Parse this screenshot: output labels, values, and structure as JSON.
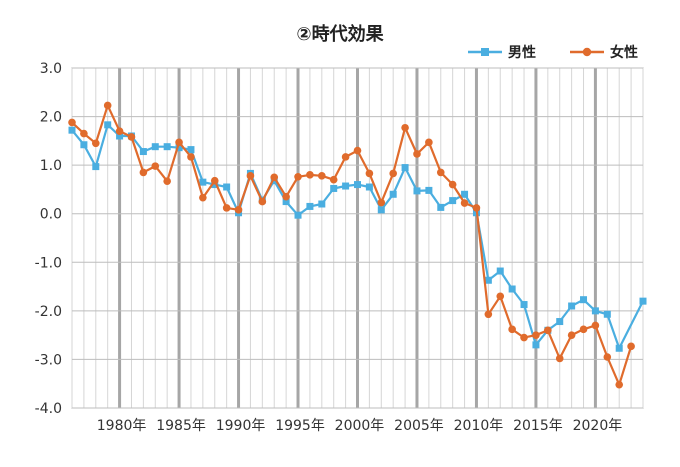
{
  "chart_data": {
    "type": "line",
    "title": "②時代効果",
    "xlabel": "",
    "ylabel": "",
    "xlim": [
      1976,
      2024
    ],
    "ylim": [
      -4.0,
      3.0
    ],
    "yticks": [
      "3.0",
      "2.0",
      "1.0",
      "0.0",
      "-1.0",
      "-2.0",
      "-3.0",
      "-4.0"
    ],
    "xticks": [
      {
        "year": 1980,
        "label": "1980年"
      },
      {
        "year": 1985,
        "label": "1985年"
      },
      {
        "year": 1990,
        "label": "1990年"
      },
      {
        "year": 1995,
        "label": "1995年"
      },
      {
        "year": 2000,
        "label": "2000年"
      },
      {
        "year": 2005,
        "label": "2005年"
      },
      {
        "year": 2010,
        "label": "2010年"
      },
      {
        "year": 2015,
        "label": "2015年"
      },
      {
        "year": 2020,
        "label": "2020年"
      }
    ],
    "grid": true,
    "legend_position": "top-right",
    "x": [
      1976,
      1977,
      1978,
      1979,
      1980,
      1981,
      1982,
      1983,
      1984,
      1985,
      1986,
      1987,
      1988,
      1989,
      1990,
      1991,
      1992,
      1993,
      1994,
      1995,
      1996,
      1997,
      1998,
      1999,
      2000,
      2001,
      2002,
      2003,
      2004,
      2005,
      2006,
      2007,
      2008,
      2009,
      2010,
      2011,
      2012,
      2013,
      2014,
      2015,
      2016,
      2017,
      2018,
      2019,
      2020,
      2021,
      2022,
      2023,
      2024
    ],
    "series": [
      {
        "name": "男性",
        "color": "#4aaee0",
        "marker": "square",
        "values": [
          1.72,
          1.42,
          0.97,
          1.83,
          1.6,
          1.6,
          1.28,
          1.38,
          1.38,
          1.36,
          1.32,
          0.65,
          0.6,
          0.55,
          0.02,
          0.83,
          0.28,
          0.68,
          0.25,
          -0.03,
          0.15,
          0.2,
          0.52,
          0.57,
          0.6,
          0.55,
          0.08,
          0.4,
          0.95,
          0.47,
          0.48,
          0.13,
          0.27,
          0.4,
          0.02,
          -1.37,
          -1.18,
          -1.55,
          -1.87,
          -2.7,
          -2.4,
          -2.22,
          -1.9,
          -1.77,
          -2.0,
          -2.07,
          -2.77,
          null,
          -1.8
        ]
      },
      {
        "name": "女性",
        "color": "#e06b2c",
        "marker": "circle",
        "values": [
          1.88,
          1.65,
          1.45,
          2.23,
          1.7,
          1.58,
          0.85,
          0.98,
          0.67,
          1.47,
          1.17,
          0.33,
          0.68,
          0.12,
          0.08,
          0.78,
          0.25,
          0.75,
          0.35,
          0.76,
          0.8,
          0.78,
          0.7,
          1.17,
          1.3,
          0.83,
          0.23,
          0.83,
          1.77,
          1.23,
          1.47,
          0.85,
          0.6,
          0.22,
          0.12,
          -2.07,
          -1.7,
          -2.38,
          -2.55,
          -2.5,
          -2.4,
          -2.98,
          -2.5,
          -2.38,
          -2.3,
          -2.95,
          -3.52,
          -2.73,
          null
        ]
      }
    ]
  }
}
